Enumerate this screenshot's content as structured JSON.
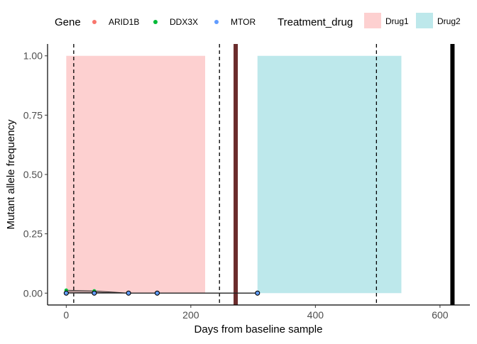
{
  "chart_data": {
    "type": "line",
    "xlabel": "Days from baseline sample",
    "ylabel": "Mutant allele frequency",
    "xlim": [
      -30,
      648
    ],
    "ylim": [
      -0.05,
      1.05
    ],
    "x_ticks": [
      0,
      200,
      400,
      600
    ],
    "x_tick_labels": [
      "0",
      "200",
      "400",
      "600"
    ],
    "y_ticks": [
      0,
      0.25,
      0.5,
      0.75,
      1.0
    ],
    "y_tick_labels": [
      "0.00",
      "0.25",
      "0.50",
      "0.75",
      "1.00"
    ],
    "grid": false,
    "legend_position": "top",
    "gene_legend": {
      "title": "Gene",
      "entries": [
        {
          "name": "ARID1B",
          "color": "#F8766D"
        },
        {
          "name": "DDX3X",
          "color": "#00BA38"
        },
        {
          "name": "MTOR",
          "color": "#619CFF"
        }
      ]
    },
    "treatment_legend": {
      "title": "Treatment_drug",
      "entries": [
        {
          "name": "Drug1",
          "color": "#FDD0D0"
        },
        {
          "name": "Drug2",
          "color": "#BDE8EB"
        }
      ]
    },
    "treatment_periods": [
      {
        "drug": "Drug1",
        "start": 0,
        "end": 223,
        "color": "#FDD0D0"
      },
      {
        "drug": "Drug2",
        "start": 307,
        "end": 538,
        "color": "#BDE8EB"
      }
    ],
    "dashed_vlines": [
      12,
      246,
      498
    ],
    "solid_vlines": [
      {
        "x": 272,
        "color": "#6B2C2C"
      },
      {
        "x": 620,
        "color": "#000000"
      }
    ],
    "series": [
      {
        "gene": "ARID1B",
        "color": "#F8766D",
        "x": [
          0,
          45,
          100,
          146,
          307
        ],
        "y": [
          0.005,
          0.003,
          0.0,
          0.0,
          0.0
        ]
      },
      {
        "gene": "DDX3X",
        "color": "#00BA38",
        "x": [
          0,
          45,
          100,
          146,
          307
        ],
        "y": [
          0.012,
          0.009,
          0.0,
          0.0,
          0.0
        ]
      },
      {
        "gene": "MTOR",
        "color": "#619CFF",
        "x": [
          0,
          45,
          100,
          146,
          307
        ],
        "y": [
          0.0,
          0.0,
          0.0,
          0.0,
          0.0
        ]
      }
    ]
  }
}
